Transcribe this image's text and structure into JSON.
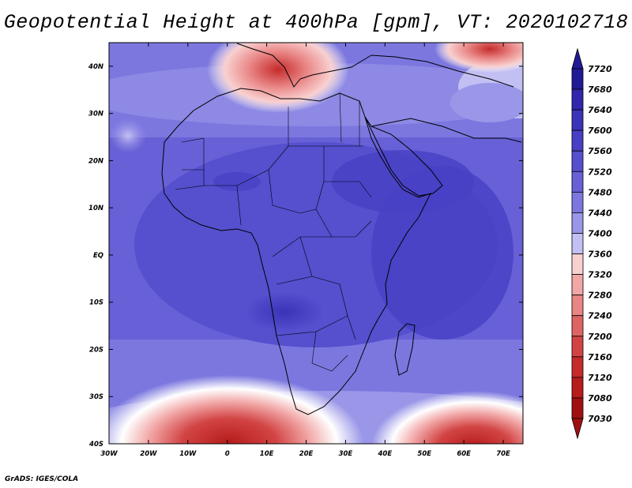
{
  "title": "Geopotential Height at 400hPa [gpm], VT: 2020102718",
  "credit": "GrADS: IGES/COLA",
  "lat_labels": [
    "40N",
    "30N",
    "20N",
    "10N",
    "EQ",
    "10S",
    "20S",
    "30S",
    "40S"
  ],
  "lon_labels": [
    "30W",
    "20W",
    "10W",
    "0",
    "10E",
    "20E",
    "30E",
    "40E",
    "50E",
    "60E",
    "70E"
  ],
  "colorbar": {
    "labels": [
      "7720",
      "7680",
      "7640",
      "7600",
      "7560",
      "7520",
      "7480",
      "7440",
      "7400",
      "7360",
      "7320",
      "7280",
      "7240",
      "7200",
      "7160",
      "7120",
      "7080",
      "7030"
    ],
    "colors": [
      "#211a96",
      "#3027ad",
      "#3b33b8",
      "#4740c4",
      "#564fce",
      "#6760d6",
      "#7c77df",
      "#9a96e8",
      "#c2c0f2",
      "#ffffff",
      "#f9d0d0",
      "#f2a7a7",
      "#e98585",
      "#de6464",
      "#d24444",
      "#c52b2b",
      "#b71c1c",
      "#a01010"
    ]
  }
}
